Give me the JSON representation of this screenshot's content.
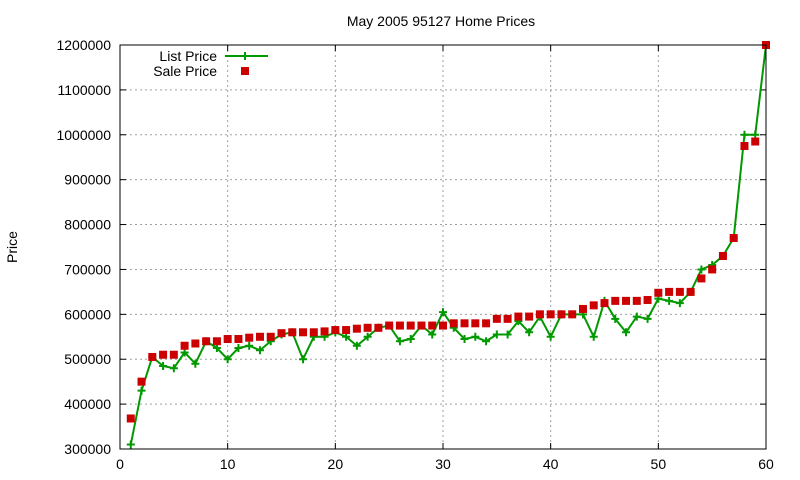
{
  "chart_data": {
    "type": "line",
    "title": "May 2005 95127 Home Prices",
    "xlabel": "",
    "ylabel": "Price",
    "xlim": [
      0,
      60
    ],
    "ylim": [
      300000,
      1200000
    ],
    "grid": true,
    "legend_position": "top-left",
    "x_ticks": [
      "0",
      "10",
      "20",
      "30",
      "40",
      "50",
      "60"
    ],
    "y_ticks": [
      "300000",
      "400000",
      "500000",
      "600000",
      "700000",
      "800000",
      "900000",
      "1000000",
      "1100000",
      "1200000"
    ],
    "x": [
      1,
      2,
      3,
      4,
      5,
      6,
      7,
      8,
      9,
      10,
      11,
      12,
      13,
      14,
      15,
      16,
      17,
      18,
      19,
      20,
      21,
      22,
      23,
      24,
      25,
      26,
      27,
      28,
      29,
      30,
      31,
      32,
      33,
      34,
      35,
      36,
      37,
      38,
      39,
      40,
      41,
      42,
      43,
      44,
      45,
      46,
      47,
      48,
      49,
      50,
      51,
      52,
      53,
      54,
      55,
      56,
      57,
      58,
      59,
      60
    ],
    "series": [
      {
        "name": "List Price",
        "color": "#009900",
        "style": "line-with-plus-markers",
        "values": [
          310000,
          430000,
          505000,
          485000,
          480000,
          515000,
          490000,
          540000,
          525000,
          500000,
          525000,
          530000,
          520000,
          540000,
          555000,
          560000,
          500000,
          550000,
          550000,
          560000,
          550000,
          530000,
          550000,
          570000,
          575000,
          540000,
          545000,
          575000,
          555000,
          605000,
          570000,
          545000,
          550000,
          540000,
          555000,
          555000,
          585000,
          560000,
          595000,
          550000,
          600000,
          600000,
          600000,
          550000,
          630000,
          590000,
          560000,
          595000,
          590000,
          635000,
          630000,
          625000,
          650000,
          700000,
          710000,
          730000,
          770000,
          1000000,
          1000000,
          1200000
        ]
      },
      {
        "name": "Sale Price",
        "color": "#cc0000",
        "style": "square-markers",
        "values": [
          368000,
          450000,
          505000,
          510000,
          510000,
          530000,
          535000,
          540000,
          540000,
          545000,
          545000,
          548000,
          550000,
          550000,
          558000,
          560000,
          560000,
          560000,
          562000,
          565000,
          565000,
          568000,
          570000,
          570000,
          575000,
          575000,
          575000,
          575000,
          575000,
          575000,
          580000,
          580000,
          580000,
          580000,
          590000,
          590000,
          595000,
          595000,
          600000,
          600000,
          600000,
          600000,
          612000,
          620000,
          625000,
          630000,
          630000,
          630000,
          632000,
          648000,
          650000,
          650000,
          650000,
          680000,
          700000,
          730000,
          770000,
          975000,
          985000,
          1200000
        ]
      }
    ]
  }
}
